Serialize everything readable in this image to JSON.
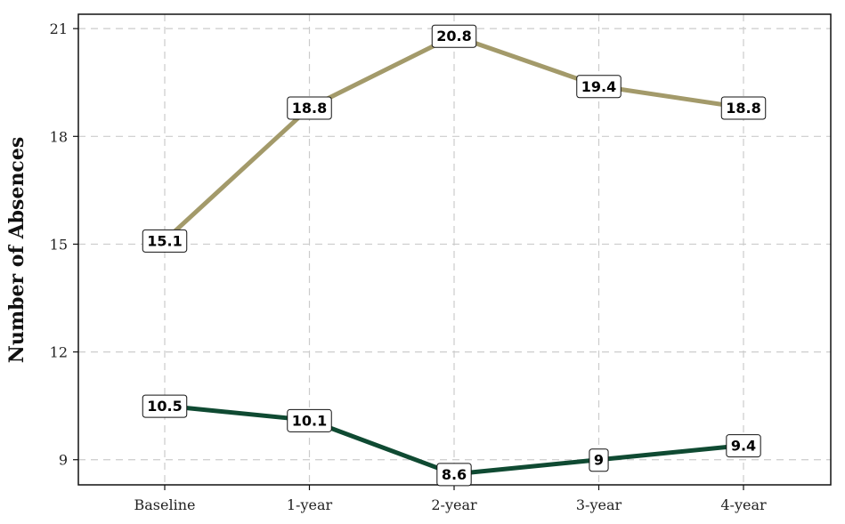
{
  "chart_data": {
    "type": "line",
    "title": "",
    "xlabel": "",
    "ylabel": "Number of Absences",
    "categories": [
      "Baseline",
      "1-year",
      "2-year",
      "3-year",
      "4-year"
    ],
    "ylim": [
      8.3,
      21.4
    ],
    "yticks": [
      9,
      12,
      15,
      18,
      21
    ],
    "grid": true,
    "legend": "none",
    "series": [
      {
        "values": [
          15.1,
          18.8,
          20.8,
          19.4,
          18.8
        ],
        "labels": [
          "15.1",
          "18.8",
          "20.8",
          "19.4",
          "18.8"
        ],
        "color": "#A39A6A"
      },
      {
        "values": [
          10.5,
          10.1,
          8.6,
          9.0,
          9.4
        ],
        "labels": [
          "10.5",
          "10.1",
          "8.6",
          "9",
          "9.4"
        ],
        "color": "#0F4A32"
      }
    ],
    "colors": {
      "grid": "#CCCCCC",
      "axis": "#111111"
    }
  }
}
